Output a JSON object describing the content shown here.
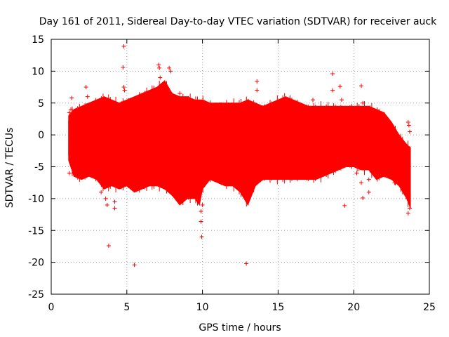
{
  "chart_data": {
    "type": "scatter",
    "title": "Day 161 of 2011, Sidereal Day-to-day VTEC variation (SDTVAR) for receiver auck",
    "xlabel": "GPS time / hours",
    "ylabel": "SDTVAR / TECUs",
    "xlim": [
      0,
      25
    ],
    "ylim": [
      -25,
      15
    ],
    "xticks": [
      0,
      5,
      10,
      15,
      20,
      25
    ],
    "yticks": [
      -25,
      -20,
      -15,
      -10,
      -5,
      0,
      5,
      10,
      15
    ],
    "xtick_labels": [
      "0",
      "5",
      "10",
      "15",
      "20",
      "25"
    ],
    "ytick_labels": [
      "-25",
      "-20",
      "-15",
      "-10",
      "-5",
      "0",
      "5",
      "10",
      "15"
    ],
    "grid": true,
    "series_color": "#ff0000",
    "envelope": {
      "x": [
        1.15,
        1.5,
        2.0,
        2.5,
        3.0,
        3.5,
        4.0,
        4.5,
        5.0,
        5.5,
        6.0,
        6.5,
        7.0,
        7.5,
        8.0,
        8.5,
        9.0,
        9.5,
        9.8,
        10.0,
        10.5,
        11.0,
        11.5,
        12.0,
        12.5,
        13.0,
        13.5,
        14.0,
        14.5,
        15.0,
        15.5,
        16.0,
        16.5,
        17.0,
        17.5,
        18.0,
        18.5,
        19.0,
        19.5,
        20.0,
        20.5,
        21.0,
        21.5,
        22.0,
        22.5,
        23.0,
        23.5,
        23.75
      ],
      "upper": [
        3.0,
        4.0,
        4.5,
        5.0,
        5.5,
        6.0,
        5.5,
        5.0,
        5.5,
        6.0,
        6.5,
        7.0,
        7.5,
        8.5,
        6.5,
        6.0,
        6.0,
        5.5,
        5.5,
        5.5,
        5.0,
        5.0,
        5.0,
        5.0,
        5.0,
        5.5,
        5.0,
        4.5,
        5.0,
        5.5,
        6.0,
        5.5,
        5.0,
        4.5,
        4.5,
        4.5,
        4.5,
        4.5,
        4.5,
        4.5,
        4.5,
        4.5,
        4.0,
        3.5,
        2.0,
        0.0,
        -1.5,
        -2.0
      ],
      "lower": [
        -4.0,
        -6.5,
        -7.0,
        -6.5,
        -7.0,
        -8.5,
        -8.0,
        -8.5,
        -8.0,
        -9.0,
        -8.5,
        -8.0,
        -8.0,
        -8.5,
        -9.5,
        -11.0,
        -10.0,
        -10.0,
        -11.0,
        -8.5,
        -7.0,
        -7.5,
        -8.0,
        -8.0,
        -9.0,
        -11.0,
        -8.0,
        -7.0,
        -7.0,
        -7.0,
        -7.0,
        -7.0,
        -7.0,
        -7.0,
        -7.0,
        -6.5,
        -6.0,
        -5.5,
        -5.0,
        -5.0,
        -5.5,
        -5.5,
        -7.0,
        -6.5,
        -7.0,
        -8.0,
        -10.0,
        -11.5
      ]
    },
    "outliers": [
      {
        "x": 1.2,
        "y": 3.5
      },
      {
        "x": 1.3,
        "y": 4.0
      },
      {
        "x": 1.35,
        "y": 5.8
      },
      {
        "x": 1.2,
        "y": -6.0
      },
      {
        "x": 2.3,
        "y": 7.5
      },
      {
        "x": 2.4,
        "y": 6.0
      },
      {
        "x": 3.3,
        "y": -9.0
      },
      {
        "x": 3.6,
        "y": -10.0
      },
      {
        "x": 3.7,
        "y": -11.0
      },
      {
        "x": 3.8,
        "y": -17.4
      },
      {
        "x": 4.2,
        "y": -10.5
      },
      {
        "x": 4.2,
        "y": -11.5
      },
      {
        "x": 4.8,
        "y": 13.9
      },
      {
        "x": 4.75,
        "y": 10.6
      },
      {
        "x": 4.8,
        "y": 7.5
      },
      {
        "x": 4.85,
        "y": 7.0
      },
      {
        "x": 5.5,
        "y": -20.4
      },
      {
        "x": 7.1,
        "y": 11.0
      },
      {
        "x": 7.15,
        "y": 10.5
      },
      {
        "x": 7.2,
        "y": 9.0
      },
      {
        "x": 7.8,
        "y": 10.5
      },
      {
        "x": 7.9,
        "y": 10.0
      },
      {
        "x": 8.5,
        "y": 6.5
      },
      {
        "x": 9.9,
        "y": -13.6
      },
      {
        "x": 9.9,
        "y": -12.0
      },
      {
        "x": 9.95,
        "y": -16.0
      },
      {
        "x": 10.0,
        "y": -11.0
      },
      {
        "x": 12.9,
        "y": -20.2
      },
      {
        "x": 13.6,
        "y": 8.4
      },
      {
        "x": 13.6,
        "y": 7.0
      },
      {
        "x": 17.3,
        "y": 5.5
      },
      {
        "x": 18.6,
        "y": 9.6
      },
      {
        "x": 18.6,
        "y": 7.0
      },
      {
        "x": 19.1,
        "y": 7.6
      },
      {
        "x": 19.2,
        "y": 5.5
      },
      {
        "x": 19.4,
        "y": -11.1
      },
      {
        "x": 20.5,
        "y": 7.7
      },
      {
        "x": 20.6,
        "y": 5.0
      },
      {
        "x": 20.5,
        "y": -7.5
      },
      {
        "x": 20.6,
        "y": -9.9
      },
      {
        "x": 20.2,
        "y": -6.0
      },
      {
        "x": 21.0,
        "y": -7.0
      },
      {
        "x": 21.0,
        "y": -9.0
      },
      {
        "x": 22.7,
        "y": -7.5
      },
      {
        "x": 23.5,
        "y": -8.0
      },
      {
        "x": 23.6,
        "y": 2.0
      },
      {
        "x": 23.65,
        "y": 1.5
      },
      {
        "x": 23.7,
        "y": 0.5
      },
      {
        "x": 23.6,
        "y": -12.3
      },
      {
        "x": 23.7,
        "y": -11.5
      },
      {
        "x": 23.55,
        "y": -10.0
      }
    ]
  }
}
